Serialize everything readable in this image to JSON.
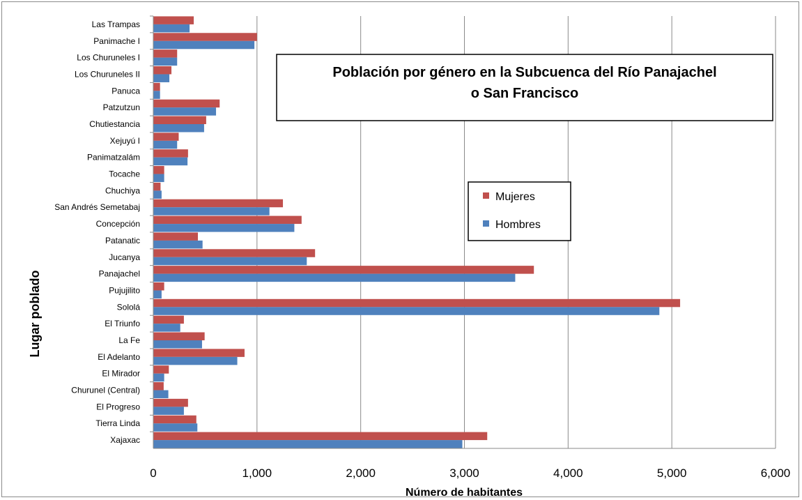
{
  "chart_data": {
    "type": "bar",
    "orientation": "horizontal",
    "title_lines": [
      "Población por género en la Subcuenca del Río Panajachel",
      "o San Francisco"
    ],
    "xlabel": "Número de habitantes",
    "ylabel": "Lugar poblado",
    "xlim": [
      0,
      6000
    ],
    "xticks": [
      "0",
      "1,000",
      "2,000",
      "3,000",
      "4,000",
      "5,000",
      "6,000"
    ],
    "grid": "vertical",
    "legend_position": "right",
    "categories": [
      "Las Trampas",
      "Panimache I",
      "Los Churuneles I",
      "Los Churuneles II",
      "Panuca",
      "Patzutzun",
      "Chutiestancia",
      "Xejuyú I",
      "Panimatzalám",
      "Tocache",
      "Chuchiya",
      "San Andrés Semetabaj",
      "Concepción",
      "Patanatic",
      "Jucanya",
      "Panajachel",
      "Pujujilito",
      "Sololá",
      "El Triunfo",
      "La Fe",
      "El Adelanto",
      "El Mirador",
      "Churunel (Central)",
      "El Progreso",
      "Tierra Linda",
      "Xajaxac"
    ],
    "series": [
      {
        "name": "Mujeres",
        "color": "#c0504d",
        "values": [
          390,
          1000,
          230,
          175,
          65,
          640,
          510,
          245,
          335,
          105,
          70,
          1250,
          1430,
          430,
          1560,
          3670,
          105,
          5080,
          295,
          495,
          880,
          150,
          100,
          335,
          415,
          3220
        ]
      },
      {
        "name": "Hombres",
        "color": "#4f81bd",
        "values": [
          350,
          975,
          230,
          155,
          65,
          605,
          490,
          230,
          330,
          105,
          80,
          1120,
          1360,
          475,
          1480,
          3490,
          80,
          4880,
          260,
          470,
          810,
          105,
          145,
          295,
          425,
          2980
        ]
      }
    ]
  }
}
